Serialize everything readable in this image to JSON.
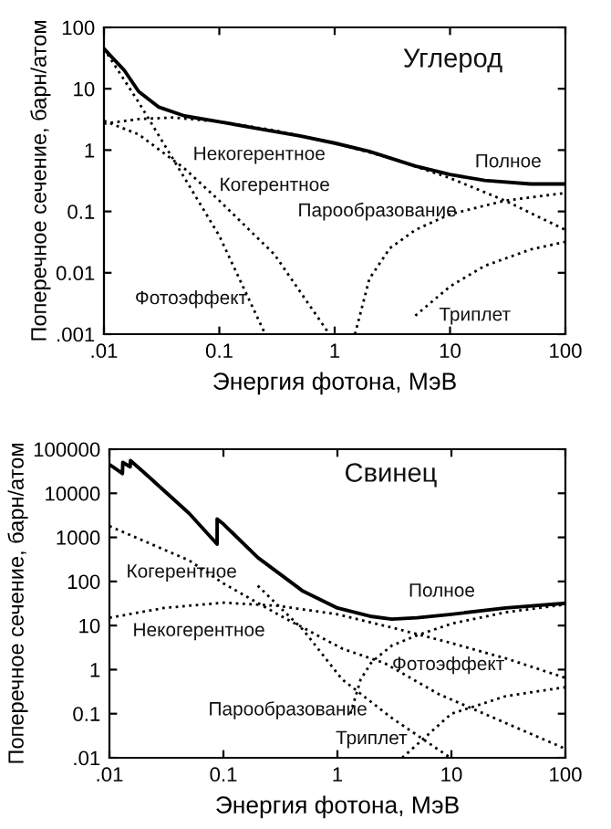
{
  "chart_data": [
    {
      "type": "line",
      "log": "xy",
      "xlabel": "Энергия фотона, МэВ",
      "ylabel": "Поперечное сечение, барн/атом",
      "grid": false,
      "legend": false,
      "marker": "none",
      "xlim": [
        0.01,
        100
      ],
      "xticks": [
        {
          "value": 0.01,
          "label": ".01"
        },
        0.1,
        1,
        10,
        100
      ],
      "ylim": [
        0.001,
        100
      ],
      "yticks": [
        {
          "value": 0.001,
          "label": ".001"
        },
        0.01,
        0.1,
        1,
        10,
        100
      ],
      "series": [
        {
          "color": "#000000",
          "line_style": "solid",
          "x": [
            0.01,
            0.015,
            0.02,
            0.03,
            0.05,
            0.1,
            0.2,
            0.5,
            1,
            2,
            5,
            10,
            20,
            50,
            100
          ],
          "values": [
            45,
            20,
            9,
            5,
            3.6,
            2.9,
            2.3,
            1.7,
            1.3,
            0.95,
            0.55,
            0.4,
            0.32,
            0.28,
            0.28
          ]
        },
        {
          "color": "#000000",
          "line_style": "dotted",
          "x": [
            0.01,
            0.02,
            0.04,
            0.1,
            0.3,
            1,
            3,
            10,
            30,
            100
          ],
          "values": [
            2.7,
            3.2,
            3.4,
            2.9,
            2.1,
            1.3,
            0.75,
            0.35,
            0.15,
            0.05
          ]
        },
        {
          "color": "#000000",
          "line_style": "dotted",
          "x": [
            0.01,
            0.02,
            0.05,
            0.1,
            0.3,
            0.9
          ],
          "values": [
            3,
            1.8,
            0.5,
            0.15,
            0.02,
            0.001
          ]
        },
        {
          "color": "#000000",
          "line_style": "dotted",
          "x": [
            0.01,
            0.02,
            0.05,
            0.1,
            0.25
          ],
          "values": [
            45,
            6,
            0.35,
            0.04,
            0.001
          ]
        },
        {
          "color": "#000000",
          "line_style": "dotted",
          "x": [
            1.5,
            2,
            3,
            5,
            10,
            30,
            100
          ],
          "values": [
            0.001,
            0.008,
            0.025,
            0.05,
            0.09,
            0.15,
            0.2
          ]
        },
        {
          "color": "#000000",
          "line_style": "dotted",
          "x": [
            5,
            10,
            20,
            50,
            100
          ],
          "values": [
            0.002,
            0.006,
            0.013,
            0.024,
            0.032
          ]
        }
      ],
      "annotations": [
        "Углерод",
        "Некогерентное",
        "Когерентное",
        "Полное",
        "Парообразование",
        "Фотоэффект",
        "Триплет"
      ]
    },
    {
      "type": "line",
      "log": "xy",
      "xlabel": "Энергия фотона, МэВ",
      "ylabel": "Поперечное сечение, барн/атом",
      "grid": false,
      "legend": false,
      "marker": "none",
      "xlim": [
        0.01,
        100
      ],
      "xticks": [
        {
          "value": 0.01,
          "label": ".01"
        },
        0.1,
        1,
        10,
        100
      ],
      "ylim": [
        0.01,
        100000
      ],
      "yticks": [
        {
          "value": 0.01,
          "label": ".01"
        },
        0.1,
        1,
        10,
        100,
        1000,
        10000,
        100000
      ],
      "series": [
        {
          "color": "#000000",
          "line_style": "solid",
          "x": [
            0.01,
            0.013,
            0.0131,
            0.0152,
            0.0153,
            0.02,
            0.05,
            0.088,
            0.0881,
            0.1,
            0.2,
            0.5,
            1,
            2,
            3,
            5,
            10,
            30,
            100
          ],
          "values": [
            45000,
            28000,
            50000,
            40000,
            55000,
            30000,
            3500,
            700,
            2600,
            2000,
            350,
            60,
            25,
            16,
            14,
            15,
            18,
            25,
            32
          ]
        },
        {
          "color": "#000000",
          "line_style": "dotted",
          "x": [
            0.01,
            0.05,
            0.1,
            0.3,
            1.1,
            2.6,
            7.7,
            100
          ],
          "values": [
            1800,
            300,
            90,
            18,
            3,
            1.4,
            0.28,
            0.016
          ]
        },
        {
          "color": "#000000",
          "line_style": "dotted",
          "x": [
            0.01,
            0.03,
            0.1,
            0.3,
            1,
            3,
            10,
            30,
            100
          ],
          "values": [
            15,
            25,
            33,
            28,
            18,
            9,
            4,
            1.8,
            0.65
          ]
        },
        {
          "color": "#000000",
          "line_style": "dotted",
          "x": [
            0.2,
            0.5,
            1.1,
            3,
            9.8
          ],
          "values": [
            80,
            8,
            0.6,
            0.08,
            0.01
          ]
        },
        {
          "color": "#000000",
          "line_style": "dotted",
          "x": [
            1.3,
            1.6,
            2,
            3,
            5,
            10,
            30,
            100
          ],
          "values": [
            0.1,
            0.6,
            1.5,
            3.5,
            6,
            11,
            20,
            30
          ]
        },
        {
          "color": "#000000",
          "line_style": "dotted",
          "x": [
            3.7,
            10,
            30,
            100
          ],
          "values": [
            0.01,
            0.1,
            0.25,
            0.4
          ]
        }
      ],
      "annotations": [
        "Свинец",
        "Когерентное",
        "Некогерентное",
        "Полное",
        "Фотоэффект",
        "Парообразование",
        "Триплет"
      ]
    }
  ]
}
